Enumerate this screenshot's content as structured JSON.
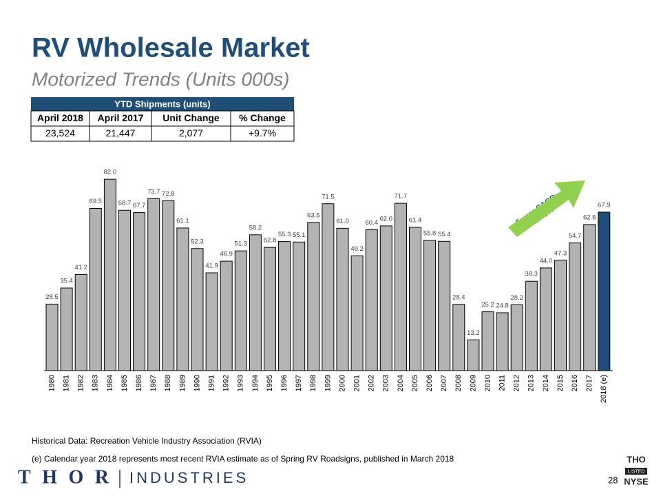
{
  "title": "RV Wholesale Market",
  "subtitle": "Motorized Trends (Units 000s)",
  "table": {
    "title": "YTD Shipments (units)",
    "headers": [
      "April 2018",
      "April 2017",
      "Unit Change",
      "% Change"
    ],
    "rows": [
      [
        "23,524",
        "21,447",
        "2,077",
        "+9.7%"
      ]
    ]
  },
  "chart_data": {
    "type": "bar",
    "categories": [
      "1980",
      "1981",
      "1982",
      "1983",
      "1984",
      "1985",
      "1986",
      "1987",
      "1988",
      "1989",
      "1990",
      "1991",
      "1992",
      "1993",
      "1994",
      "1995",
      "1996",
      "1997",
      "1998",
      "1999",
      "2000",
      "2001",
      "2002",
      "2003",
      "2004",
      "2005",
      "2006",
      "2007",
      "2008",
      "2009",
      "2010",
      "2011",
      "2012",
      "2013",
      "2014",
      "2015",
      "2016",
      "2017",
      "2018 (e)"
    ],
    "values": [
      28.5,
      35.4,
      41.2,
      69.5,
      82.0,
      68.7,
      67.7,
      73.7,
      72.8,
      61.1,
      52.3,
      41.9,
      46.9,
      51.3,
      58.2,
      52.8,
      55.3,
      55.1,
      63.5,
      71.5,
      61.0,
      49.2,
      60.4,
      62.0,
      71.7,
      61.4,
      55.8,
      55.4,
      28.4,
      13.2,
      25.2,
      24.8,
      28.2,
      38.3,
      44.0,
      47.3,
      54.7,
      62.6,
      67.9
    ],
    "value_labels": [
      "28.5",
      "35.4",
      "41.2",
      "69.5",
      "82.0",
      "68.7",
      "67.7",
      "73.7",
      "72.8",
      "61.1",
      "52.3",
      "41.9",
      "46.9",
      "51.3",
      "58.2",
      "52.8",
      "55.3",
      "55.1",
      "63.5",
      "71.5",
      "61.0",
      "49.2",
      "60.4",
      "62.0",
      "71.7",
      "61.4",
      "55.8",
      "55.4",
      "28.4",
      "13.2",
      "25.2",
      "24.8",
      "28.2",
      "38.3",
      "44.0",
      "47.3",
      "54.7",
      "62.6",
      "67.9"
    ],
    "colors": [
      "#b3b3b3",
      "#b3b3b3",
      "#b3b3b3",
      "#b3b3b3",
      "#b3b3b3",
      "#b3b3b3",
      "#b3b3b3",
      "#b3b3b3",
      "#b3b3b3",
      "#b3b3b3",
      "#b3b3b3",
      "#b3b3b3",
      "#b3b3b3",
      "#b3b3b3",
      "#b3b3b3",
      "#b3b3b3",
      "#b3b3b3",
      "#b3b3b3",
      "#b3b3b3",
      "#b3b3b3",
      "#b3b3b3",
      "#b3b3b3",
      "#b3b3b3",
      "#b3b3b3",
      "#b3b3b3",
      "#b3b3b3",
      "#b3b3b3",
      "#b3b3b3",
      "#b3b3b3",
      "#b3b3b3",
      "#b3b3b3",
      "#b3b3b3",
      "#b3b3b3",
      "#b3b3b3",
      "#b3b3b3",
      "#b3b3b3",
      "#b3b3b3",
      "#b3b3b3",
      "#1f4e79"
    ],
    "ylim": [
      0,
      85
    ],
    "annotation": [
      "5-year CAGR:",
      "+17.3%"
    ]
  },
  "footnotes": [
    "Historical Data: Recreation Vehicle Industry Association (RVIA)",
    "(e) Calendar year 2018 represents most recent RVIA estimate as of Spring RV Roadsigns, published in March 2018"
  ],
  "page_number": "28",
  "logo": {
    "name": "THOR",
    "suffix": "INDUSTRIES"
  },
  "exchange": {
    "ticker": "THO",
    "status": "LISTED",
    "exchange": "NYSE"
  }
}
